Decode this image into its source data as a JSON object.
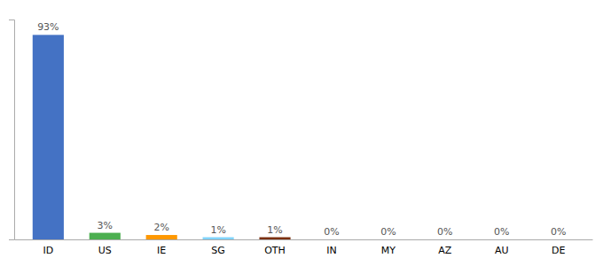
{
  "chart_data": {
    "type": "bar",
    "categories": [
      "ID",
      "US",
      "IE",
      "SG",
      "OTH",
      "IN",
      "MY",
      "AZ",
      "AU",
      "DE"
    ],
    "values": [
      93,
      3,
      2,
      1,
      1,
      0,
      0,
      0,
      0,
      0
    ],
    "value_labels": [
      "93%",
      "3%",
      "2%",
      "1%",
      "1%",
      "0%",
      "0%",
      "0%",
      "0%",
      "0%"
    ],
    "colors": [
      "#4472c4",
      "#4caf50",
      "#ff9800",
      "#81d4fa",
      "#7b3010",
      "#4472c4",
      "#4472c4",
      "#4472c4",
      "#4472c4",
      "#4472c4"
    ],
    "ylim": [
      0,
      100
    ],
    "yticks": [],
    "grid": false,
    "data_labels": true,
    "tick_labels": "x"
  }
}
